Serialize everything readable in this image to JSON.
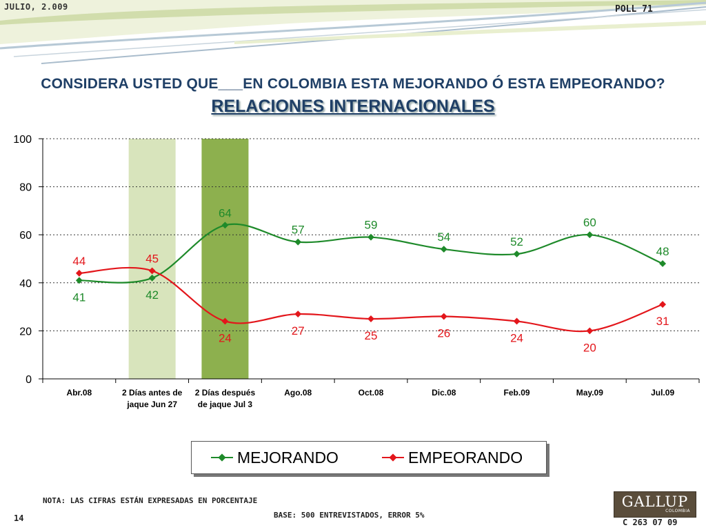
{
  "header": {
    "date": "JULIO, 2.009",
    "poll": "POLL 71"
  },
  "title": {
    "question": "CONSIDERA USTED QUE___EN COLOMBIA ESTA MEJORANDO Ó ESTA EMPEORANDO?",
    "topic": "RELACIONES INTERNACIONALES"
  },
  "chart_data": {
    "type": "line",
    "categories": [
      "Abr.08",
      "2 Días antes de jaque Jun 27",
      "2 Días después de jaque Jul 3",
      "Ago.08",
      "Oct.08",
      "Dic.08",
      "Feb.09",
      "May.09",
      "Jul.09"
    ],
    "category_lines": [
      [
        "Abr.08"
      ],
      [
        "2 Días antes de",
        "jaque Jun 27"
      ],
      [
        "2 Días después",
        "de jaque Jul 3"
      ],
      [
        "Ago.08"
      ],
      [
        "Oct.08"
      ],
      [
        "Dic.08"
      ],
      [
        "Feb.09"
      ],
      [
        "May.09"
      ],
      [
        "Jul.09"
      ]
    ],
    "series": [
      {
        "name": "MEJORANDO",
        "color": "#1e8a2a",
        "values": [
          41,
          42,
          64,
          57,
          59,
          54,
          52,
          60,
          48
        ]
      },
      {
        "name": "EMPEORANDO",
        "color": "#e3161b",
        "values": [
          44,
          45,
          24,
          27,
          25,
          26,
          24,
          20,
          31
        ]
      }
    ],
    "yticks": [
      0,
      20,
      40,
      60,
      80,
      100
    ],
    "ylim": [
      0,
      100
    ],
    "grid": true,
    "legend_position": "bottom",
    "highlight_bands": [
      {
        "category_index": 1,
        "color": "#d8e4bc"
      },
      {
        "category_index": 2,
        "color": "#8db04e"
      }
    ]
  },
  "footer": {
    "note": "NOTA: LAS CIFRAS ESTÁN EXPRESADAS EN PORCENTAJE",
    "base": "BASE: 500 ENTREVISTADOS, ERROR 5%",
    "page": "14",
    "logo_text": "GALLUP",
    "logo_sub": "COLOMBIA",
    "code": "C 263 07 09"
  }
}
